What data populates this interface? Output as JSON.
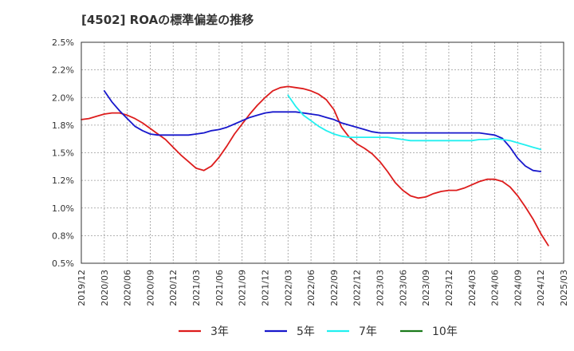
{
  "chart_data": {
    "type": "line",
    "title": "[4502]  ROAの標準偏差の推移",
    "xlabel": "",
    "ylabel": "",
    "x_range": [
      "2019-12",
      "2025-03"
    ],
    "ylim": [
      0.5,
      2.5
    ],
    "y_ticks": [
      0.5,
      0.75,
      1.0,
      1.25,
      1.5,
      1.75,
      2.0,
      2.25,
      2.5
    ],
    "y_tick_labels": [
      "0.5%",
      "0.8%",
      "1.0%",
      "1.2%",
      "1.5%",
      "1.8%",
      "2.0%",
      "2.2%",
      "2.5%"
    ],
    "x_ticks": [
      "2019-12",
      "2020-03",
      "2020-06",
      "2020-09",
      "2020-12",
      "2021-03",
      "2021-06",
      "2021-09",
      "2021-12",
      "2022-03",
      "2022-06",
      "2022-09",
      "2022-12",
      "2023-03",
      "2023-06",
      "2023-09",
      "2023-12",
      "2024-03",
      "2024-06",
      "2024-09",
      "2024-12",
      "2025-03"
    ],
    "x_tick_labels": [
      "2019/12",
      "2020/03",
      "2020/06",
      "2020/09",
      "2020/12",
      "2021/03",
      "2021/06",
      "2021/09",
      "2021/12",
      "2022/03",
      "2022/06",
      "2022/09",
      "2022/12",
      "2023/03",
      "2023/06",
      "2023/09",
      "2023/12",
      "2024/03",
      "2024/06",
      "2024/09",
      "2024/12",
      "2025/03"
    ],
    "grid": true,
    "legend_position": "bottom",
    "series": [
      {
        "name": "3年",
        "color": "#dd1c1c",
        "points": [
          [
            "2019-12",
            1.8
          ],
          [
            "2020-01",
            1.81
          ],
          [
            "2020-02",
            1.83
          ],
          [
            "2020-03",
            1.85
          ],
          [
            "2020-04",
            1.86
          ],
          [
            "2020-05",
            1.86
          ],
          [
            "2020-06",
            1.84
          ],
          [
            "2020-07",
            1.81
          ],
          [
            "2020-08",
            1.77
          ],
          [
            "2020-09",
            1.72
          ],
          [
            "2020-10",
            1.67
          ],
          [
            "2020-11",
            1.62
          ],
          [
            "2020-12",
            1.55
          ],
          [
            "2021-01",
            1.48
          ],
          [
            "2021-02",
            1.42
          ],
          [
            "2021-03",
            1.36
          ],
          [
            "2021-04",
            1.34
          ],
          [
            "2021-05",
            1.38
          ],
          [
            "2021-06",
            1.46
          ],
          [
            "2021-07",
            1.56
          ],
          [
            "2021-08",
            1.67
          ],
          [
            "2021-09",
            1.76
          ],
          [
            "2021-10",
            1.85
          ],
          [
            "2021-11",
            1.93
          ],
          [
            "2021-12",
            2.0
          ],
          [
            "2022-01",
            2.06
          ],
          [
            "2022-02",
            2.09
          ],
          [
            "2022-03",
            2.1
          ],
          [
            "2022-04",
            2.09
          ],
          [
            "2022-05",
            2.08
          ],
          [
            "2022-06",
            2.06
          ],
          [
            "2022-07",
            2.03
          ],
          [
            "2022-08",
            1.98
          ],
          [
            "2022-09",
            1.89
          ],
          [
            "2022-10",
            1.73
          ],
          [
            "2022-11",
            1.64
          ],
          [
            "2022-12",
            1.58
          ],
          [
            "2023-01",
            1.54
          ],
          [
            "2023-02",
            1.49
          ],
          [
            "2023-03",
            1.42
          ],
          [
            "2023-04",
            1.33
          ],
          [
            "2023-05",
            1.23
          ],
          [
            "2023-06",
            1.16
          ],
          [
            "2023-07",
            1.11
          ],
          [
            "2023-08",
            1.09
          ],
          [
            "2023-09",
            1.1
          ],
          [
            "2023-10",
            1.13
          ],
          [
            "2023-11",
            1.15
          ],
          [
            "2023-12",
            1.16
          ],
          [
            "2024-01",
            1.16
          ],
          [
            "2024-02",
            1.18
          ],
          [
            "2024-03",
            1.21
          ],
          [
            "2024-04",
            1.24
          ],
          [
            "2024-05",
            1.26
          ],
          [
            "2024-06",
            1.26
          ],
          [
            "2024-07",
            1.24
          ],
          [
            "2024-08",
            1.19
          ],
          [
            "2024-09",
            1.11
          ],
          [
            "2024-10",
            1.01
          ],
          [
            "2024-11",
            0.9
          ],
          [
            "2024-12",
            0.77
          ],
          [
            "2025-01",
            0.66
          ]
        ]
      },
      {
        "name": "5年",
        "color": "#1818cc",
        "points": [
          [
            "2020-03",
            2.06
          ],
          [
            "2020-04",
            1.96
          ],
          [
            "2020-05",
            1.88
          ],
          [
            "2020-06",
            1.81
          ],
          [
            "2020-07",
            1.74
          ],
          [
            "2020-08",
            1.7
          ],
          [
            "2020-09",
            1.67
          ],
          [
            "2020-10",
            1.66
          ],
          [
            "2020-11",
            1.66
          ],
          [
            "2020-12",
            1.66
          ],
          [
            "2021-01",
            1.66
          ],
          [
            "2021-02",
            1.66
          ],
          [
            "2021-03",
            1.67
          ],
          [
            "2021-04",
            1.68
          ],
          [
            "2021-05",
            1.7
          ],
          [
            "2021-06",
            1.71
          ],
          [
            "2021-07",
            1.73
          ],
          [
            "2021-08",
            1.76
          ],
          [
            "2021-09",
            1.79
          ],
          [
            "2021-10",
            1.82
          ],
          [
            "2021-11",
            1.84
          ],
          [
            "2021-12",
            1.86
          ],
          [
            "2022-01",
            1.87
          ],
          [
            "2022-02",
            1.87
          ],
          [
            "2022-03",
            1.87
          ],
          [
            "2022-04",
            1.87
          ],
          [
            "2022-05",
            1.86
          ],
          [
            "2022-06",
            1.85
          ],
          [
            "2022-07",
            1.84
          ],
          [
            "2022-08",
            1.82
          ],
          [
            "2022-09",
            1.8
          ],
          [
            "2022-10",
            1.77
          ],
          [
            "2022-11",
            1.75
          ],
          [
            "2022-12",
            1.73
          ],
          [
            "2023-01",
            1.71
          ],
          [
            "2023-02",
            1.69
          ],
          [
            "2023-03",
            1.68
          ],
          [
            "2023-04",
            1.68
          ],
          [
            "2023-05",
            1.68
          ],
          [
            "2023-06",
            1.68
          ],
          [
            "2023-07",
            1.68
          ],
          [
            "2023-08",
            1.68
          ],
          [
            "2023-09",
            1.68
          ],
          [
            "2023-10",
            1.68
          ],
          [
            "2023-11",
            1.68
          ],
          [
            "2023-12",
            1.68
          ],
          [
            "2024-01",
            1.68
          ],
          [
            "2024-02",
            1.68
          ],
          [
            "2024-03",
            1.68
          ],
          [
            "2024-04",
            1.68
          ],
          [
            "2024-05",
            1.67
          ],
          [
            "2024-06",
            1.66
          ],
          [
            "2024-07",
            1.63
          ],
          [
            "2024-08",
            1.55
          ],
          [
            "2024-09",
            1.45
          ],
          [
            "2024-10",
            1.38
          ],
          [
            "2024-11",
            1.34
          ],
          [
            "2024-12",
            1.33
          ]
        ]
      },
      {
        "name": "7年",
        "color": "#22f0f0",
        "points": [
          [
            "2022-03",
            2.02
          ],
          [
            "2022-04",
            1.92
          ],
          [
            "2022-05",
            1.84
          ],
          [
            "2022-06",
            1.79
          ],
          [
            "2022-07",
            1.74
          ],
          [
            "2022-08",
            1.7
          ],
          [
            "2022-09",
            1.67
          ],
          [
            "2022-10",
            1.65
          ],
          [
            "2022-11",
            1.64
          ],
          [
            "2022-12",
            1.64
          ],
          [
            "2023-01",
            1.64
          ],
          [
            "2023-02",
            1.64
          ],
          [
            "2023-03",
            1.64
          ],
          [
            "2023-04",
            1.64
          ],
          [
            "2023-05",
            1.63
          ],
          [
            "2023-06",
            1.62
          ],
          [
            "2023-07",
            1.61
          ],
          [
            "2023-08",
            1.61
          ],
          [
            "2023-09",
            1.61
          ],
          [
            "2023-10",
            1.61
          ],
          [
            "2023-11",
            1.61
          ],
          [
            "2023-12",
            1.61
          ],
          [
            "2024-01",
            1.61
          ],
          [
            "2024-02",
            1.61
          ],
          [
            "2024-03",
            1.61
          ],
          [
            "2024-04",
            1.62
          ],
          [
            "2024-05",
            1.62
          ],
          [
            "2024-06",
            1.63
          ],
          [
            "2024-07",
            1.62
          ],
          [
            "2024-08",
            1.61
          ],
          [
            "2024-09",
            1.59
          ],
          [
            "2024-10",
            1.57
          ],
          [
            "2024-11",
            1.55
          ],
          [
            "2024-12",
            1.53
          ]
        ]
      },
      {
        "name": "10年",
        "color": "#1a7a1a",
        "points": []
      }
    ]
  }
}
